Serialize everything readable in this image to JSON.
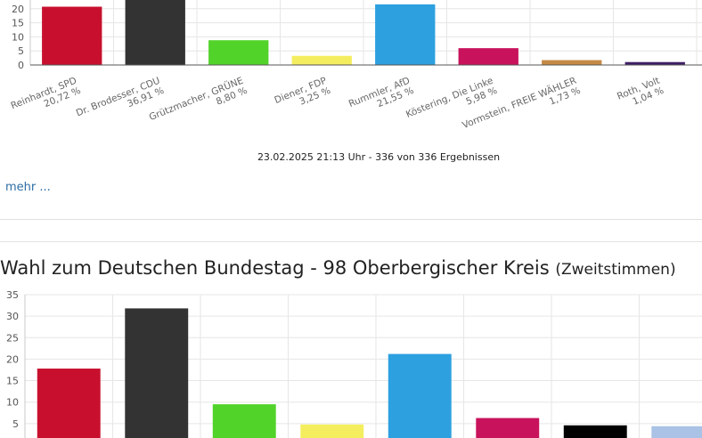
{
  "chart_data": [
    {
      "type": "bar",
      "categories": [
        "Reinhardt, SPD",
        "Dr. Brodesser, CDU",
        "Grützmacher, GRÜNE",
        "Diener, FDP",
        "Rummler, AfD",
        "Köstering, Die Linke",
        "Vormstein, FREIE WÄHLER",
        "Roth, Volt"
      ],
      "value_labels": [
        "20,72 %",
        "36,91 %",
        "8,80 %",
        "3,25 %",
        "21,55 %",
        "5,98 %",
        "1,73 %",
        "1,04 %"
      ],
      "values": [
        20.72,
        36.91,
        8.8,
        3.25,
        21.55,
        5.98,
        1.73,
        1.04
      ],
      "colors": [
        "#c8102e",
        "#333333",
        "#52d32a",
        "#f4ee5f",
        "#2da0e0",
        "#c8135c",
        "#c58a45",
        "#3f1f66"
      ],
      "yticks": [
        0,
        5,
        10,
        15,
        20
      ],
      "ylim": [
        0,
        40
      ],
      "grid": true,
      "footer": "23.02.2025 21:13 Uhr - 336 von 336 Ergebnissen"
    },
    {
      "type": "bar",
      "title": "Wahl zum Deutschen Bundestag - 98 Oberbergischer Kreis",
      "subtitle": "(Zweitstimmen)",
      "values": [
        17.8,
        31.8,
        9.5,
        4.8,
        21.2,
        6.3,
        4.6,
        4.4
      ],
      "colors": [
        "#c8102e",
        "#333333",
        "#52d32a",
        "#f4ee5f",
        "#2da0e0",
        "#c8135c",
        "#000000",
        "#a9c2e5"
      ],
      "yticks": [
        5,
        10,
        15,
        20,
        25,
        30,
        35
      ],
      "ylim": [
        0,
        35
      ],
      "grid": true
    }
  ],
  "links": {
    "more": "mehr ..."
  }
}
